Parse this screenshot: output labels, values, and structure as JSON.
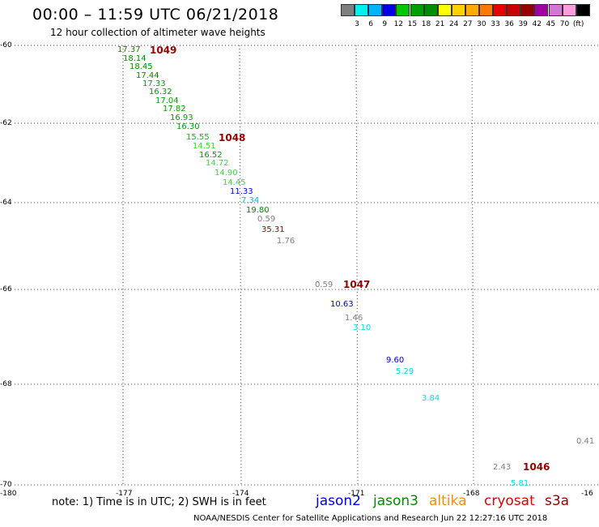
{
  "title": "00:00 – 11:59 UTC 06/21/2018",
  "subtitle": "12 hour collection of altimeter wave heights",
  "scale": {
    "colors": [
      "#7f7f7f",
      "#00f0f0",
      "#00b4ff",
      "#0000e6",
      "#00c800",
      "#00a000",
      "#008c00",
      "#ffff00",
      "#ffd200",
      "#ffaa00",
      "#ff7800",
      "#e60000",
      "#c80000",
      "#960000",
      "#a000a0",
      "#d278d2",
      "#ff9cde",
      "#000000"
    ],
    "labels": [
      "3",
      "6",
      "9",
      "12",
      "15",
      "18",
      "21",
      "24",
      "27",
      "30",
      "33",
      "36",
      "39",
      "42",
      "45",
      "70",
      "(ft)"
    ]
  },
  "lat_labels": [
    "-60",
    "-62",
    "-64",
    "-66",
    "-68",
    "-70"
  ],
  "lon_labels": [
    "-180",
    "-177",
    "-174",
    "-171",
    "-168",
    "-16"
  ],
  "points": [
    {
      "v": "17.37",
      "c": "#008c00"
    },
    {
      "v": "18.14",
      "c": "#008c00"
    },
    {
      "v": "18.45",
      "c": "#008c00"
    },
    {
      "v": "17.44",
      "c": "#008c00"
    },
    {
      "v": "17.33",
      "c": "#00a000"
    },
    {
      "v": "16.32",
      "c": "#00a000"
    },
    {
      "v": "17.04",
      "c": "#00a000"
    },
    {
      "v": "17.82",
      "c": "#00a000"
    },
    {
      "v": "16.93",
      "c": "#00a000"
    },
    {
      "v": "16.30",
      "c": "#00a000"
    },
    {
      "v": "15.55",
      "c": "#00c800"
    },
    {
      "v": "14.51",
      "c": "#33dd33"
    },
    {
      "v": "16.52",
      "c": "#00a000"
    },
    {
      "v": "14.72",
      "c": "#33dd33"
    },
    {
      "v": "14.90",
      "c": "#33dd33"
    },
    {
      "v": "14.45",
      "c": "#33dd33"
    },
    {
      "v": "11.33",
      "c": "#0000e6"
    },
    {
      "v": "7.34",
      "c": "#00b4ff"
    },
    {
      "v": "19.80",
      "c": "#008c00"
    },
    {
      "v": "0.59",
      "c": "#7f7f7f"
    },
    {
      "v": "35.31",
      "c": "#960000"
    },
    {
      "v": "1.76",
      "c": "#7f7f7f"
    },
    {
      "v": "0.59",
      "c": "#7f7f7f"
    },
    {
      "v": "10.63",
      "c": "#0000e6"
    },
    {
      "v": "1.46",
      "c": "#7f7f7f"
    },
    {
      "v": "3.10",
      "c": "#00e0e0"
    },
    {
      "v": "9.60",
      "c": "#0000e6"
    },
    {
      "v": "5.29",
      "c": "#00e0e0"
    },
    {
      "v": "3.84",
      "c": "#00e0e0"
    },
    {
      "v": "0.41",
      "c": "#7f7f7f"
    },
    {
      "v": "2.43",
      "c": "#7f7f7f"
    },
    {
      "v": "5.81",
      "c": "#00e0e0"
    }
  ],
  "pressure": [
    {
      "v": "1049",
      "c": "#960000"
    },
    {
      "v": "1048",
      "c": "#960000"
    },
    {
      "v": "1047",
      "c": "#960000"
    },
    {
      "v": "1046",
      "c": "#960000"
    }
  ],
  "note": "note: 1) Time is in UTC; 2) SWH is in feet",
  "legend": [
    {
      "name": "jason2",
      "color": "#0000e6"
    },
    {
      "name": "jason3",
      "color": "#008c00"
    },
    {
      "name": "altika",
      "color": "#ff8c00"
    },
    {
      "name": "cryosat",
      "color": "#e60000"
    },
    {
      "name": "s3a",
      "color": "#960000"
    }
  ],
  "credit": "NOAA/NESDIS Center for Satellite Applications and Research    Jun 22 12:27:16 UTC 2018"
}
